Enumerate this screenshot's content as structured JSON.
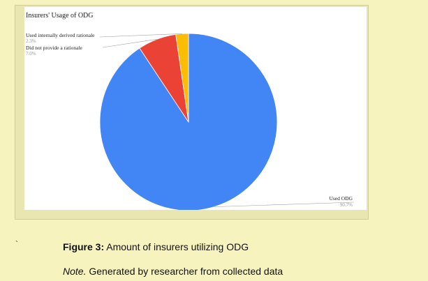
{
  "chart_data": {
    "type": "pie",
    "title": "Insurers' Usage of ODG",
    "slices": [
      {
        "label": "Used ODG",
        "percent_text": "90.7%",
        "value": 90.7,
        "color": "#4285f4"
      },
      {
        "label": "Did not provide a rationale",
        "percent_text": "7.0%",
        "value": 7.0,
        "color": "#ea4335"
      },
      {
        "label": "Used internally derived rationale",
        "percent_text": "2.3%",
        "value": 2.3,
        "color": "#fbbc04"
      }
    ],
    "legend": "none",
    "start_angle": "12 o'clock",
    "direction": "clockwise"
  },
  "page": {
    "tick_mark": "`",
    "caption_label": "Figure 3:",
    "caption_text": "Amount of insurers utilizing ODG",
    "note_label": "Note.",
    "note_text": "Generated by researcher from collected data"
  }
}
